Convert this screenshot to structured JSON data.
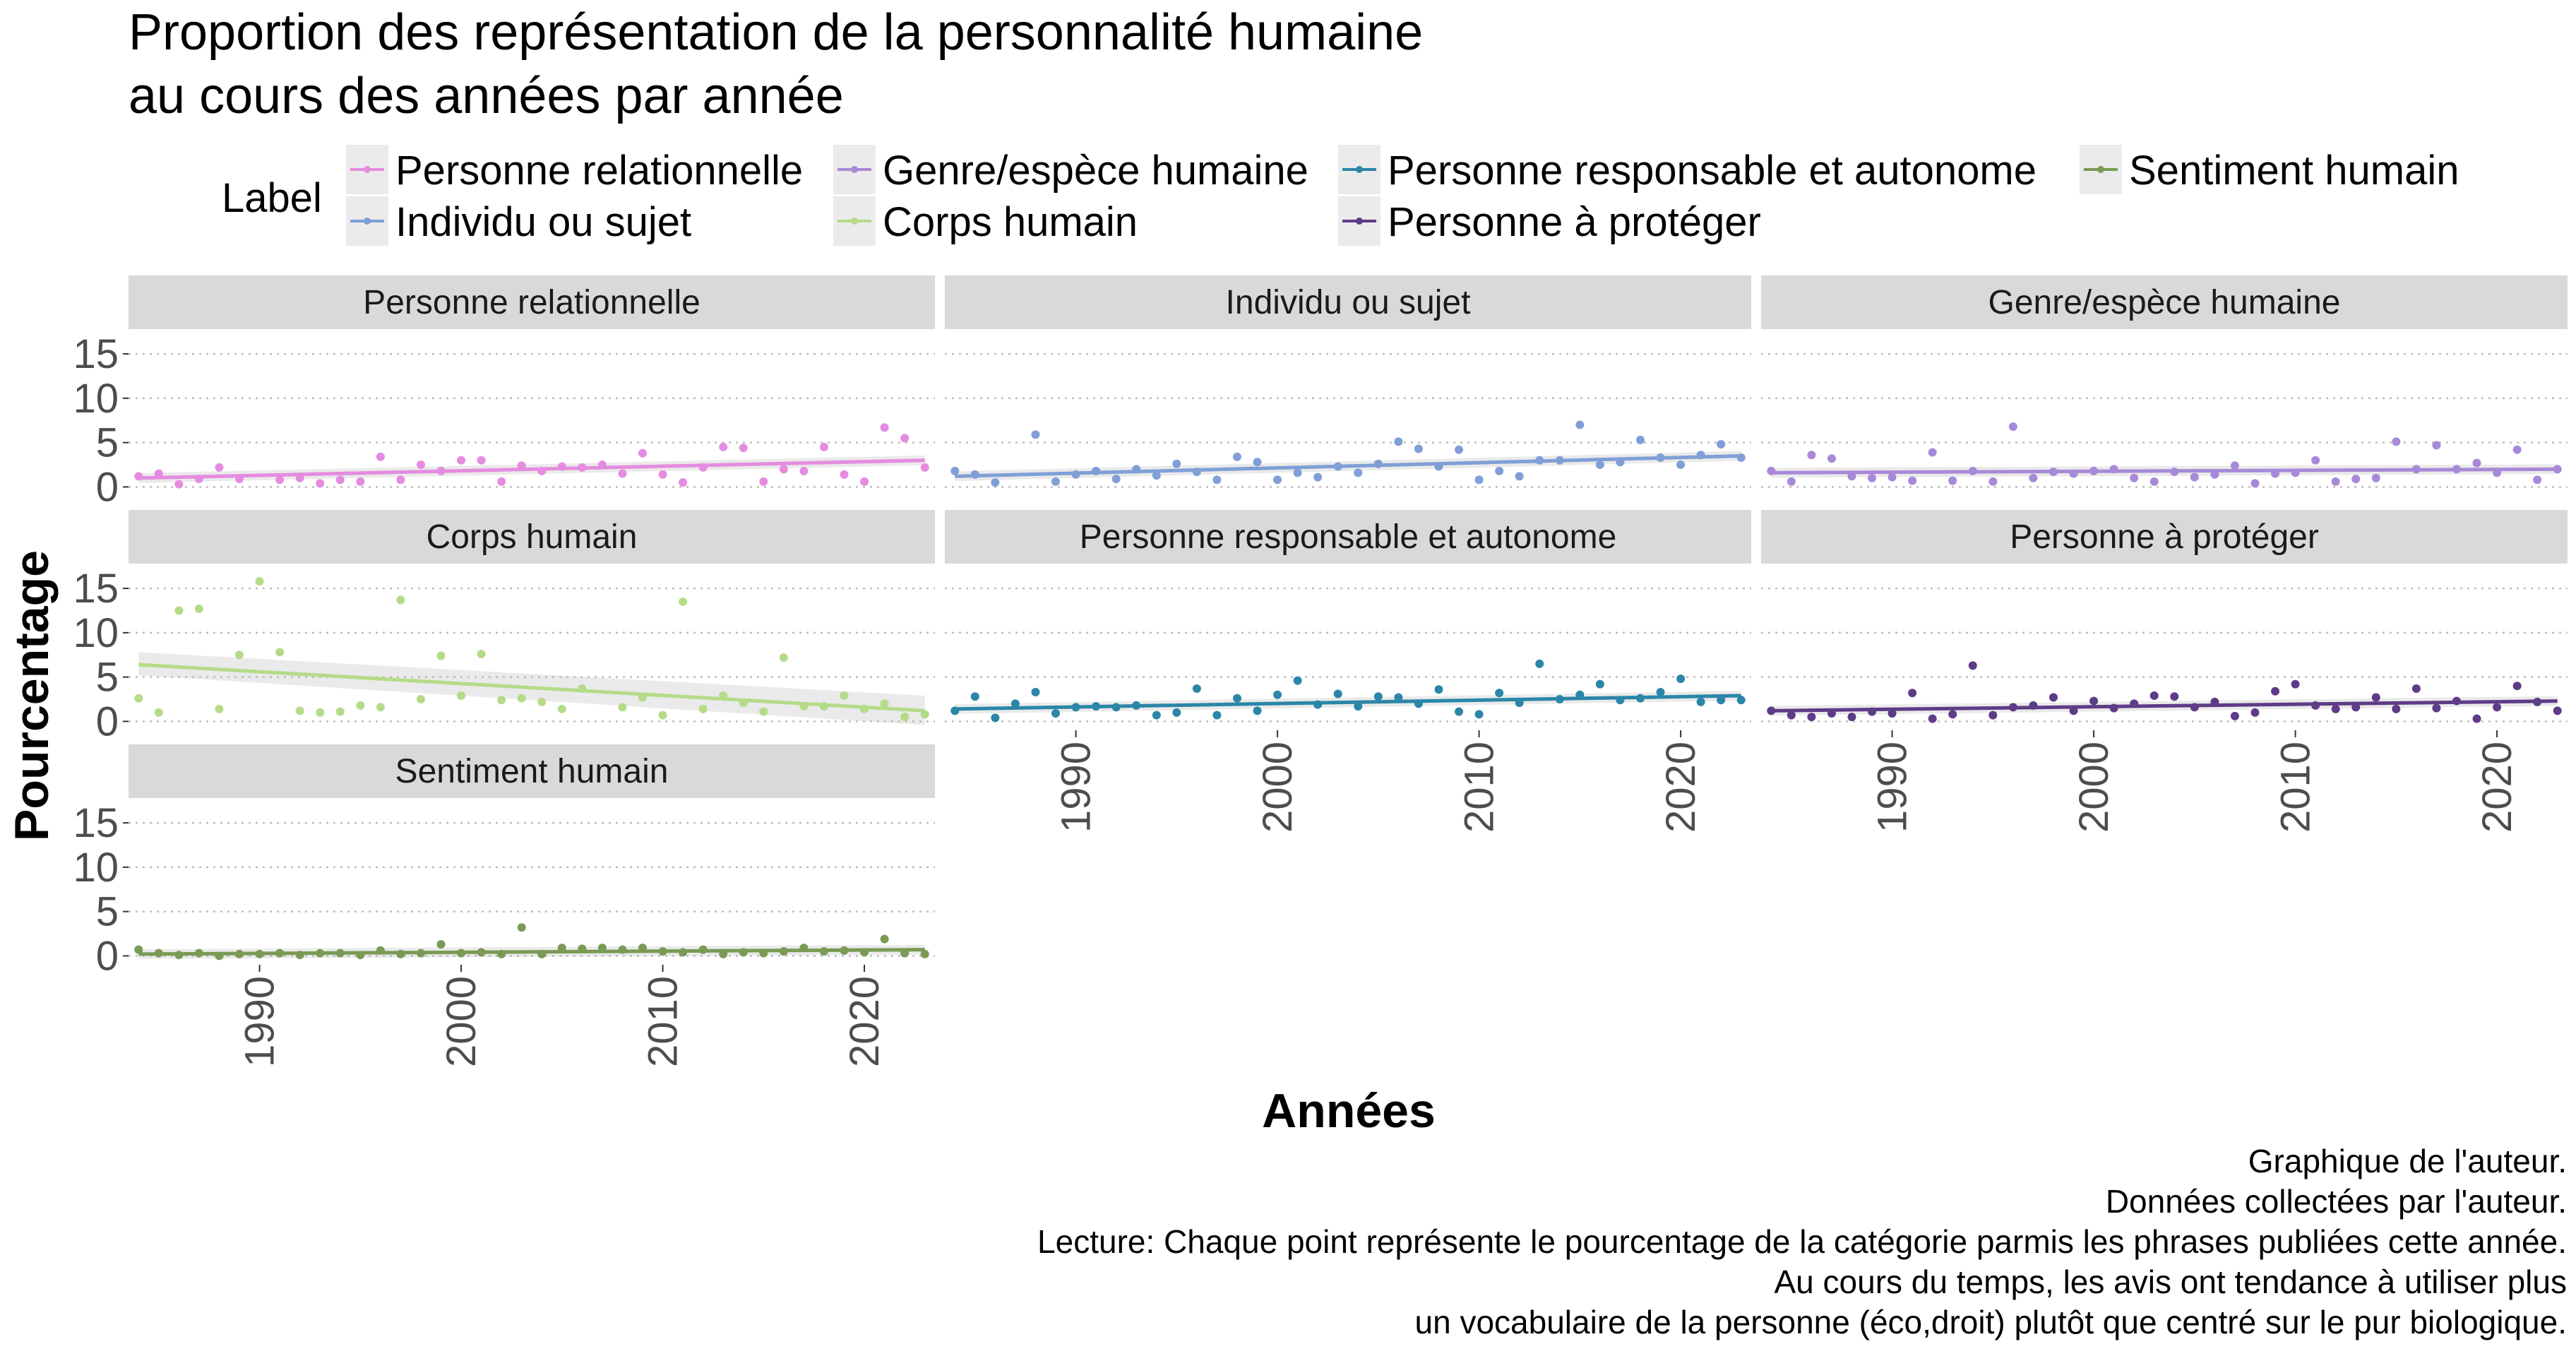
{
  "chart_data": {
    "type": "scatter",
    "title": "Proportion des représentation de la personnalité humaine",
    "subtitle": "au cours des années par année",
    "xlabel": "Années",
    "ylabel": "Pourcentage",
    "legend_title": "Label",
    "legend_position": "top",
    "x_range": [
      1983.5,
      2023.5
    ],
    "y_range": [
      -1,
      17
    ],
    "x_ticks": [
      1990,
      2000,
      2010,
      2020
    ],
    "x_tick_labels": [
      "1990",
      "2000",
      "2010",
      "2020"
    ],
    "y_ticks": [
      0,
      5,
      10,
      15
    ],
    "y_tick_labels": [
      "0",
      "5",
      "10",
      "15"
    ],
    "grid": true,
    "captions": [
      "Graphique de l'auteur.",
      "Données collectées par l'auteur.",
      "Lecture: Chaque point représente le pourcentage de la catégorie parmis les phrases publiées cette année.",
      "Au cours du temps, les avis ont tendance à utiliser plus",
      "un vocabulaire de la personne (éco,droit) plutôt que centré sur le pur biologique."
    ],
    "series": [
      {
        "name": "Personne relationnelle",
        "color": "#e48ce0",
        "trend": [
          1.0,
          3.0
        ],
        "points": [
          [
            1984,
            1.2
          ],
          [
            1985,
            1.5
          ],
          [
            1986,
            0.3
          ],
          [
            1987,
            0.9
          ],
          [
            1988,
            2.2
          ],
          [
            1989,
            0.9
          ],
          [
            1991,
            0.8
          ],
          [
            1992,
            1.0
          ],
          [
            1993,
            0.4
          ],
          [
            1994,
            0.8
          ],
          [
            1995,
            0.6
          ],
          [
            1996,
            3.4
          ],
          [
            1997,
            0.8
          ],
          [
            1998,
            2.5
          ],
          [
            1999,
            1.8
          ],
          [
            2000,
            3.0
          ],
          [
            2001,
            3.0
          ],
          [
            2002,
            0.6
          ],
          [
            2003,
            2.4
          ],
          [
            2004,
            1.8
          ],
          [
            2005,
            2.3
          ],
          [
            2006,
            2.2
          ],
          [
            2007,
            2.5
          ],
          [
            2008,
            1.5
          ],
          [
            2009,
            3.8
          ],
          [
            2010,
            1.4
          ],
          [
            2011,
            0.5
          ],
          [
            2012,
            2.2
          ],
          [
            2013,
            4.5
          ],
          [
            2014,
            4.4
          ],
          [
            2015,
            0.6
          ],
          [
            2016,
            2.0
          ],
          [
            2017,
            1.8
          ],
          [
            2018,
            4.5
          ],
          [
            2019,
            1.4
          ],
          [
            2020,
            0.6
          ],
          [
            2021,
            6.7
          ],
          [
            2022,
            5.5
          ],
          [
            2023,
            2.2
          ]
        ]
      },
      {
        "name": "Individu ou sujet",
        "color": "#7f9fd6",
        "trend": [
          1.2,
          3.5
        ],
        "points": [
          [
            1984,
            1.8
          ],
          [
            1985,
            1.4
          ],
          [
            1986,
            0.5
          ],
          [
            1988,
            5.9
          ],
          [
            1989,
            0.6
          ],
          [
            1990,
            1.4
          ],
          [
            1991,
            1.8
          ],
          [
            1992,
            0.9
          ],
          [
            1993,
            2.0
          ],
          [
            1994,
            1.3
          ],
          [
            1995,
            2.6
          ],
          [
            1996,
            1.7
          ],
          [
            1997,
            0.8
          ],
          [
            1998,
            3.4
          ],
          [
            1999,
            2.8
          ],
          [
            2000,
            0.8
          ],
          [
            2001,
            1.6
          ],
          [
            2002,
            1.1
          ],
          [
            2003,
            2.3
          ],
          [
            2004,
            1.6
          ],
          [
            2005,
            2.6
          ],
          [
            2006,
            5.1
          ],
          [
            2007,
            4.3
          ],
          [
            2008,
            2.3
          ],
          [
            2009,
            4.2
          ],
          [
            2010,
            0.8
          ],
          [
            2011,
            1.8
          ],
          [
            2012,
            1.2
          ],
          [
            2013,
            3.0
          ],
          [
            2014,
            3.0
          ],
          [
            2015,
            7.0
          ],
          [
            2016,
            2.5
          ],
          [
            2017,
            2.8
          ],
          [
            2018,
            5.3
          ],
          [
            2019,
            3.3
          ],
          [
            2020,
            2.5
          ],
          [
            2021,
            3.6
          ],
          [
            2022,
            4.8
          ],
          [
            2023,
            3.3
          ]
        ]
      },
      {
        "name": "Genre/espèce humaine",
        "color": "#a889d8",
        "trend": [
          1.6,
          2.0
        ],
        "points": [
          [
            1984,
            1.8
          ],
          [
            1985,
            0.6
          ],
          [
            1986,
            3.6
          ],
          [
            1987,
            3.2
          ],
          [
            1988,
            1.2
          ],
          [
            1989,
            1.0
          ],
          [
            1990,
            1.1
          ],
          [
            1991,
            0.7
          ],
          [
            1992,
            3.9
          ],
          [
            1993,
            0.7
          ],
          [
            1994,
            1.8
          ],
          [
            1995,
            0.6
          ],
          [
            1996,
            6.8
          ],
          [
            1997,
            1.0
          ],
          [
            1998,
            1.7
          ],
          [
            1999,
            1.5
          ],
          [
            2000,
            1.8
          ],
          [
            2001,
            2.0
          ],
          [
            2002,
            1.0
          ],
          [
            2003,
            0.6
          ],
          [
            2004,
            1.7
          ],
          [
            2005,
            1.1
          ],
          [
            2006,
            1.4
          ],
          [
            2007,
            2.4
          ],
          [
            2008,
            0.4
          ],
          [
            2009,
            1.5
          ],
          [
            2010,
            1.6
          ],
          [
            2011,
            3.0
          ],
          [
            2012,
            0.6
          ],
          [
            2013,
            0.9
          ],
          [
            2014,
            1.0
          ],
          [
            2015,
            5.1
          ],
          [
            2016,
            2.0
          ],
          [
            2017,
            4.7
          ],
          [
            2018,
            2.0
          ],
          [
            2019,
            2.7
          ],
          [
            2020,
            1.6
          ],
          [
            2021,
            4.2
          ],
          [
            2022,
            0.8
          ],
          [
            2023,
            2.0
          ]
        ]
      },
      {
        "name": "Corps humain",
        "color": "#b5db89",
        "trend": [
          6.4,
          1.2
        ],
        "ci_lower": [
          5.2,
          -0.4
        ],
        "ci_upper": [
          7.8,
          2.9
        ],
        "points": [
          [
            1984,
            2.6
          ],
          [
            1985,
            1.0
          ],
          [
            1986,
            12.5
          ],
          [
            1987,
            12.7
          ],
          [
            1988,
            1.4
          ],
          [
            1989,
            7.5
          ],
          [
            1990,
            15.8
          ],
          [
            1991,
            7.8
          ],
          [
            1992,
            1.2
          ],
          [
            1993,
            1.0
          ],
          [
            1994,
            1.1
          ],
          [
            1995,
            1.8
          ],
          [
            1996,
            1.6
          ],
          [
            1997,
            13.7
          ],
          [
            1998,
            2.5
          ],
          [
            1999,
            7.4
          ],
          [
            2000,
            2.9
          ],
          [
            2001,
            7.6
          ],
          [
            2002,
            2.4
          ],
          [
            2003,
            2.6
          ],
          [
            2004,
            2.2
          ],
          [
            2005,
            1.4
          ],
          [
            2006,
            3.7
          ],
          [
            2008,
            1.6
          ],
          [
            2009,
            2.7
          ],
          [
            2010,
            0.7
          ],
          [
            2011,
            13.5
          ],
          [
            2012,
            1.4
          ],
          [
            2013,
            2.9
          ],
          [
            2014,
            2.1
          ],
          [
            2015,
            1.1
          ],
          [
            2016,
            7.2
          ],
          [
            2017,
            1.7
          ],
          [
            2018,
            1.7
          ],
          [
            2019,
            2.9
          ],
          [
            2020,
            1.4
          ],
          [
            2021,
            2.0
          ],
          [
            2022,
            0.5
          ],
          [
            2023,
            0.8
          ]
        ]
      },
      {
        "name": "Personne responsable et autonome",
        "color": "#2b86a8",
        "trend": [
          1.4,
          2.9
        ],
        "points": [
          [
            1984,
            1.2
          ],
          [
            1985,
            2.8
          ],
          [
            1986,
            0.4
          ],
          [
            1987,
            2.0
          ],
          [
            1988,
            3.3
          ],
          [
            1989,
            0.9
          ],
          [
            1990,
            1.6
          ],
          [
            1991,
            1.7
          ],
          [
            1992,
            1.6
          ],
          [
            1993,
            1.8
          ],
          [
            1994,
            0.7
          ],
          [
            1995,
            1.0
          ],
          [
            1996,
            3.7
          ],
          [
            1997,
            0.7
          ],
          [
            1998,
            2.6
          ],
          [
            1999,
            1.2
          ],
          [
            2000,
            3.0
          ],
          [
            2001,
            4.6
          ],
          [
            2002,
            1.9
          ],
          [
            2003,
            3.1
          ],
          [
            2004,
            1.7
          ],
          [
            2005,
            2.8
          ],
          [
            2006,
            2.7
          ],
          [
            2007,
            2.0
          ],
          [
            2008,
            3.6
          ],
          [
            2009,
            1.1
          ],
          [
            2010,
            0.8
          ],
          [
            2011,
            3.2
          ],
          [
            2012,
            2.1
          ],
          [
            2013,
            6.5
          ],
          [
            2014,
            2.5
          ],
          [
            2015,
            3.0
          ],
          [
            2016,
            4.2
          ],
          [
            2017,
            2.4
          ],
          [
            2018,
            2.6
          ],
          [
            2019,
            3.3
          ],
          [
            2020,
            4.8
          ],
          [
            2021,
            2.2
          ],
          [
            2022,
            2.4
          ],
          [
            2023,
            2.4
          ]
        ]
      },
      {
        "name": "Personne à protéger",
        "color": "#5e3c87",
        "trend": [
          1.2,
          2.3
        ],
        "points": [
          [
            1984,
            1.2
          ],
          [
            1985,
            0.7
          ],
          [
            1986,
            0.5
          ],
          [
            1987,
            0.9
          ],
          [
            1988,
            0.5
          ],
          [
            1989,
            1.1
          ],
          [
            1990,
            0.9
          ],
          [
            1991,
            3.2
          ],
          [
            1992,
            0.3
          ],
          [
            1993,
            0.8
          ],
          [
            1994,
            6.3
          ],
          [
            1995,
            0.7
          ],
          [
            1996,
            1.6
          ],
          [
            1997,
            1.8
          ],
          [
            1998,
            2.7
          ],
          [
            1999,
            1.2
          ],
          [
            2000,
            2.3
          ],
          [
            2001,
            1.5
          ],
          [
            2002,
            2.0
          ],
          [
            2003,
            2.9
          ],
          [
            2004,
            2.8
          ],
          [
            2005,
            1.6
          ],
          [
            2006,
            2.2
          ],
          [
            2007,
            0.6
          ],
          [
            2008,
            1.0
          ],
          [
            2009,
            3.4
          ],
          [
            2010,
            4.2
          ],
          [
            2011,
            1.8
          ],
          [
            2012,
            1.4
          ],
          [
            2013,
            1.6
          ],
          [
            2014,
            2.7
          ],
          [
            2015,
            1.4
          ],
          [
            2016,
            3.7
          ],
          [
            2017,
            1.5
          ],
          [
            2018,
            2.3
          ],
          [
            2019,
            0.3
          ],
          [
            2020,
            1.6
          ],
          [
            2021,
            4.0
          ],
          [
            2022,
            2.2
          ],
          [
            2023,
            1.2
          ]
        ]
      },
      {
        "name": "Sentiment humain",
        "color": "#7a9a55",
        "trend": [
          0.2,
          0.7
        ],
        "points": [
          [
            1984,
            0.7
          ],
          [
            1985,
            0.3
          ],
          [
            1986,
            0.1
          ],
          [
            1987,
            0.3
          ],
          [
            1988,
            0.0
          ],
          [
            1989,
            0.2
          ],
          [
            1990,
            0.2
          ],
          [
            1991,
            0.3
          ],
          [
            1992,
            0.1
          ],
          [
            1993,
            0.3
          ],
          [
            1994,
            0.3
          ],
          [
            1995,
            0.1
          ],
          [
            1996,
            0.6
          ],
          [
            1997,
            0.2
          ],
          [
            1998,
            0.3
          ],
          [
            1999,
            1.3
          ],
          [
            2000,
            0.3
          ],
          [
            2001,
            0.4
          ],
          [
            2002,
            0.2
          ],
          [
            2003,
            3.2
          ],
          [
            2004,
            0.2
          ],
          [
            2005,
            0.9
          ],
          [
            2006,
            0.8
          ],
          [
            2007,
            0.9
          ],
          [
            2008,
            0.7
          ],
          [
            2009,
            0.9
          ],
          [
            2010,
            0.5
          ],
          [
            2011,
            0.4
          ],
          [
            2012,
            0.7
          ],
          [
            2013,
            0.2
          ],
          [
            2014,
            0.4
          ],
          [
            2015,
            0.3
          ],
          [
            2016,
            0.5
          ],
          [
            2017,
            0.9
          ],
          [
            2018,
            0.5
          ],
          [
            2019,
            0.6
          ],
          [
            2020,
            0.4
          ],
          [
            2021,
            1.9
          ],
          [
            2022,
            0.3
          ],
          [
            2023,
            0.2
          ]
        ]
      }
    ]
  }
}
